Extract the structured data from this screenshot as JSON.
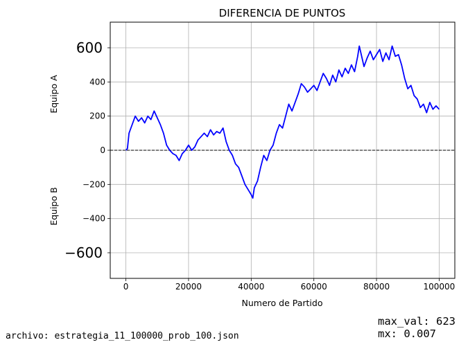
{
  "chart_data": {
    "type": "line",
    "title": "DIFERENCIA DE PUNTOS",
    "xlabel": "Numero de Partido",
    "ylabel_top": "Equipo A",
    "ylabel_bottom": "Equipo B",
    "xlim": [
      -5000,
      105000
    ],
    "ylim": [
      -750,
      750
    ],
    "xticks": [
      0,
      20000,
      40000,
      60000,
      80000,
      100000
    ],
    "xtick_labels": [
      "0",
      "20000",
      "40000",
      "60000",
      "80000",
      "100000"
    ],
    "yticks": [
      -400,
      -200,
      0,
      200,
      400
    ],
    "ytick_labels": [
      "−400",
      "−200",
      "0",
      "200",
      "400"
    ],
    "yticks_large": [
      -600,
      600
    ],
    "ytick_large_labels": [
      "−600",
      "600"
    ],
    "grid": true,
    "reference_line": {
      "y": 0,
      "style": "dashed",
      "color": "#000000"
    },
    "series": [
      {
        "color": "#0000ff",
        "x": [
          0,
          500,
          1000,
          2000,
          3000,
          4000,
          5000,
          6000,
          7000,
          8000,
          9000,
          10000,
          11000,
          12000,
          13000,
          14000,
          15000,
          16000,
          17000,
          18000,
          19000,
          20000,
          21000,
          22000,
          23000,
          24000,
          25000,
          26000,
          27000,
          28000,
          29000,
          30000,
          31000,
          32000,
          33000,
          34000,
          35000,
          36000,
          37000,
          38000,
          39000,
          40000,
          40500,
          41000,
          42000,
          43000,
          44000,
          45000,
          46000,
          47000,
          48000,
          49000,
          50000,
          51000,
          52000,
          53000,
          54000,
          55000,
          56000,
          57000,
          58000,
          59000,
          60000,
          61000,
          62000,
          63000,
          64000,
          65000,
          66000,
          67000,
          68000,
          69000,
          70000,
          71000,
          72000,
          73000,
          74000,
          74500,
          75000,
          76000,
          77000,
          78000,
          79000,
          80000,
          81000,
          82000,
          83000,
          84000,
          85000,
          86000,
          87000,
          88000,
          89000,
          90000,
          91000,
          92000,
          93000,
          94000,
          95000,
          96000,
          97000,
          98000,
          99000,
          100000
        ],
        "y": [
          0,
          10,
          100,
          150,
          200,
          170,
          190,
          160,
          200,
          180,
          230,
          190,
          150,
          100,
          30,
          0,
          -20,
          -30,
          -60,
          -20,
          0,
          30,
          0,
          20,
          60,
          80,
          100,
          80,
          120,
          90,
          110,
          100,
          130,
          50,
          0,
          -30,
          -80,
          -100,
          -150,
          -200,
          -230,
          -260,
          -280,
          -220,
          -180,
          -100,
          -30,
          -60,
          0,
          30,
          100,
          150,
          130,
          200,
          270,
          230,
          280,
          330,
          390,
          370,
          340,
          360,
          380,
          350,
          400,
          450,
          420,
          380,
          440,
          400,
          470,
          430,
          480,
          450,
          500,
          460,
          550,
          610,
          570,
          490,
          540,
          580,
          530,
          560,
          590,
          520,
          570,
          530,
          610,
          550,
          560,
          500,
          420,
          360,
          380,
          320,
          300,
          250,
          270,
          220,
          280,
          240,
          260,
          240
        ]
      }
    ]
  },
  "footer": {
    "file_label": "archivo: estrategia_11_100000_prob_100.json",
    "max_val_label": "max_val: 623",
    "mx_label": "mx: 0.007"
  }
}
